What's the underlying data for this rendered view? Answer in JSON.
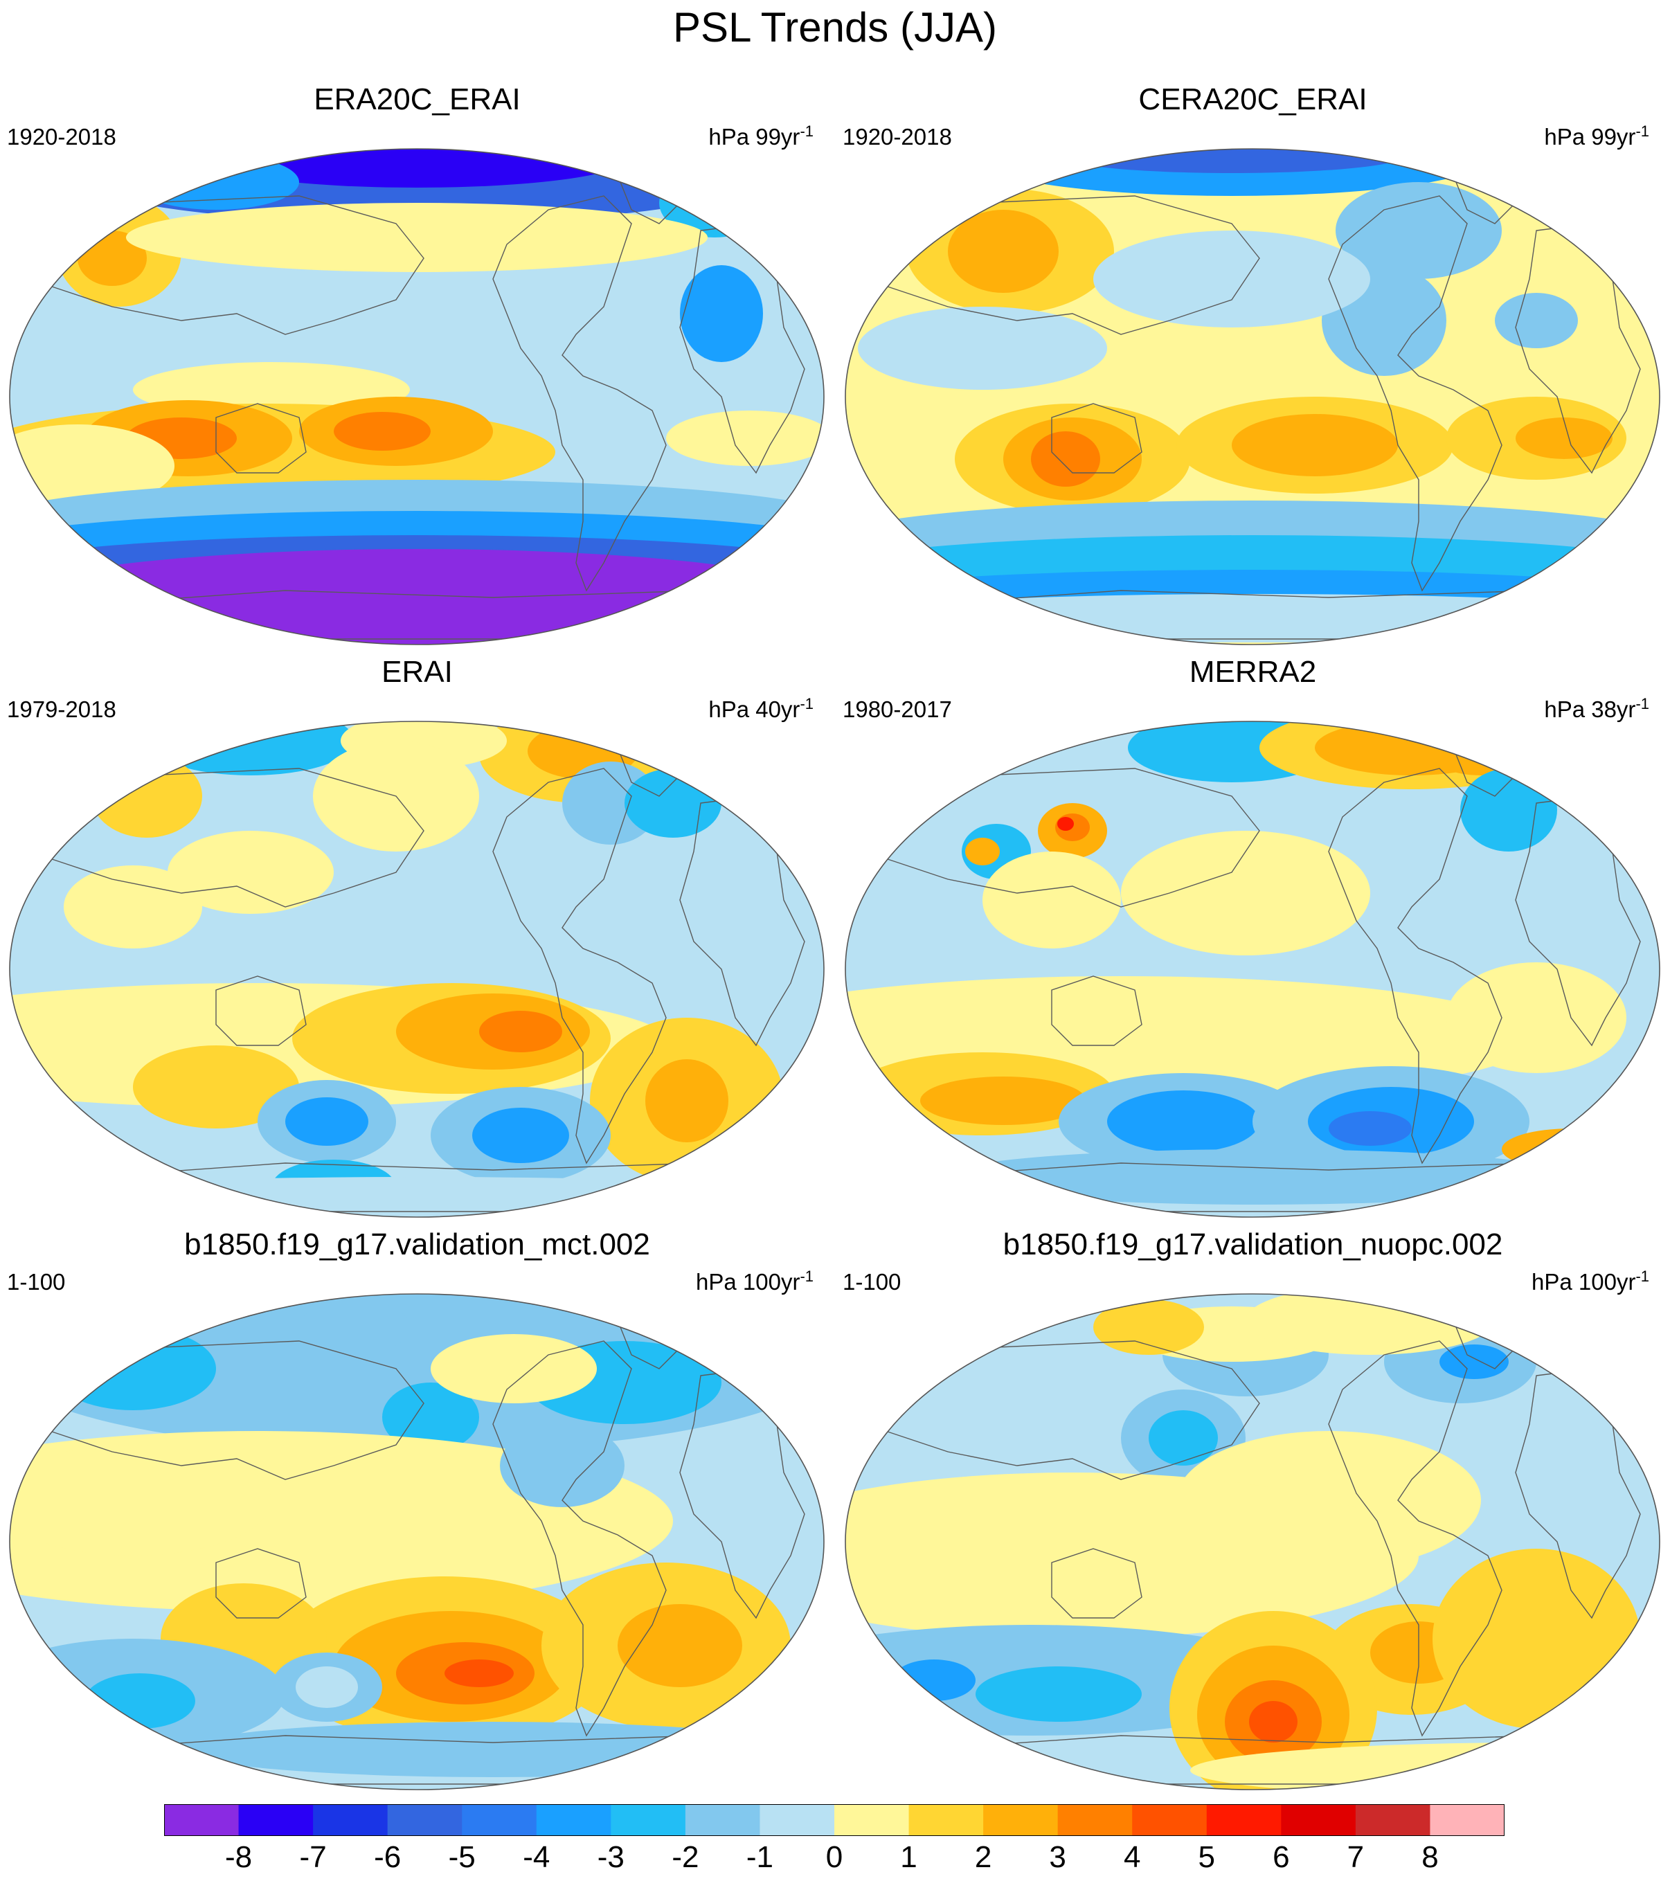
{
  "title": "PSL Trends (JJA)",
  "panels": [
    {
      "title": "ERA20C_ERAI",
      "period": "1920-2018",
      "unit": "hPa 99yr",
      "unit_exp": "-1",
      "scheme": "era20c"
    },
    {
      "title": "CERA20C_ERAI",
      "period": "1920-2018",
      "unit": "hPa 99yr",
      "unit_exp": "-1",
      "scheme": "cera20c"
    },
    {
      "title": "ERAI",
      "period": "1979-2018",
      "unit": "hPa 40yr",
      "unit_exp": "-1",
      "scheme": "erai"
    },
    {
      "title": "MERRA2",
      "period": "1980-2017",
      "unit": "hPa 38yr",
      "unit_exp": "-1",
      "scheme": "merra2"
    },
    {
      "title": "b1850.f19_g17.validation_mct.002",
      "period": "1-100",
      "unit": "hPa 100yr",
      "unit_exp": "-1",
      "scheme": "mct"
    },
    {
      "title": "b1850.f19_g17.validation_nuopc.002",
      "period": "1-100",
      "unit": "hPa 100yr",
      "unit_exp": "-1",
      "scheme": "nuopc"
    }
  ],
  "colorbar": {
    "labels": [
      "-8",
      "-7",
      "-6",
      "-5",
      "-4",
      "-3",
      "-2",
      "-1",
      "0",
      "1",
      "2",
      "3",
      "4",
      "5",
      "6",
      "7",
      "8"
    ],
    "colors": [
      "#8a2be2",
      "#2a00f5",
      "#1a35e6",
      "#3366e0",
      "#2b7bf2",
      "#1aa0ff",
      "#22bef5",
      "#82c8ee",
      "#b8e1f3",
      "#fff799",
      "#ffd633",
      "#ffb00a",
      "#ff8000",
      "#ff5200",
      "#ff1a00",
      "#e00000",
      "#cc2a2a",
      "#ffb3b8"
    ]
  }
}
